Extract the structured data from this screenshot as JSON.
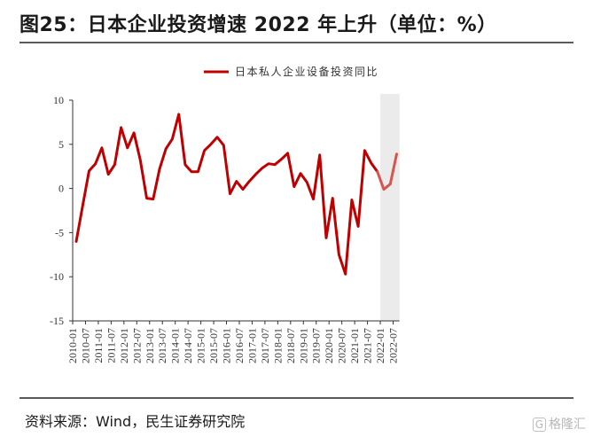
{
  "figure": {
    "title": "图25：日本企业投资增速 2022 年上升（单位：%）",
    "source": "资料来源：Wind，民生证券研究院",
    "watermark": "格隆汇",
    "watermark_logo": "G"
  },
  "chart_data": {
    "type": "line",
    "series": [
      {
        "name": "日本私人企业设备投资同比",
        "color": "#c00000",
        "projection_color": "#d9534f"
      }
    ],
    "x_tick_labels": [
      "2010-01",
      "2010-07",
      "2011-01",
      "2011-07",
      "2012-01",
      "2012-07",
      "2013-01",
      "2013-07",
      "2014-01",
      "2014-07",
      "2015-01",
      "2015-07",
      "2016-01",
      "2016-07",
      "2017-01",
      "2017-07",
      "2018-01",
      "2018-07",
      "2019-01",
      "2019-07",
      "2020-01",
      "2020-07",
      "2021-01",
      "2021-07",
      "2022-01",
      "2022-07"
    ],
    "values": [
      -6.0,
      -2.0,
      2.0,
      2.8,
      4.6,
      1.6,
      2.7,
      6.9,
      4.6,
      6.3,
      3.2,
      -1.1,
      -1.2,
      2.2,
      4.5,
      5.6,
      8.4,
      2.7,
      1.9,
      1.9,
      4.3,
      5.0,
      5.8,
      4.9,
      -0.6,
      0.8,
      -0.1,
      0.8,
      1.6,
      2.3,
      2.8,
      2.7,
      3.3,
      4.0,
      0.2,
      1.7,
      0.7,
      -1.2,
      3.8,
      -5.6,
      -1.1,
      -7.5,
      -9.7,
      -1.3,
      -4.3,
      4.3,
      2.9,
      1.9,
      -0.1,
      0.5,
      3.9
    ],
    "x_start": "2010-01",
    "x_step_months": 3,
    "projection_start_index": 47,
    "shaded_region": [
      "2022-01",
      "2022-10"
    ],
    "shade_color": "#ebebeb",
    "ylim": [
      -15,
      10
    ],
    "y_ticks": [
      10,
      5,
      0,
      -5,
      -10,
      -15
    ],
    "grid": false,
    "legend_position": "top-center"
  }
}
